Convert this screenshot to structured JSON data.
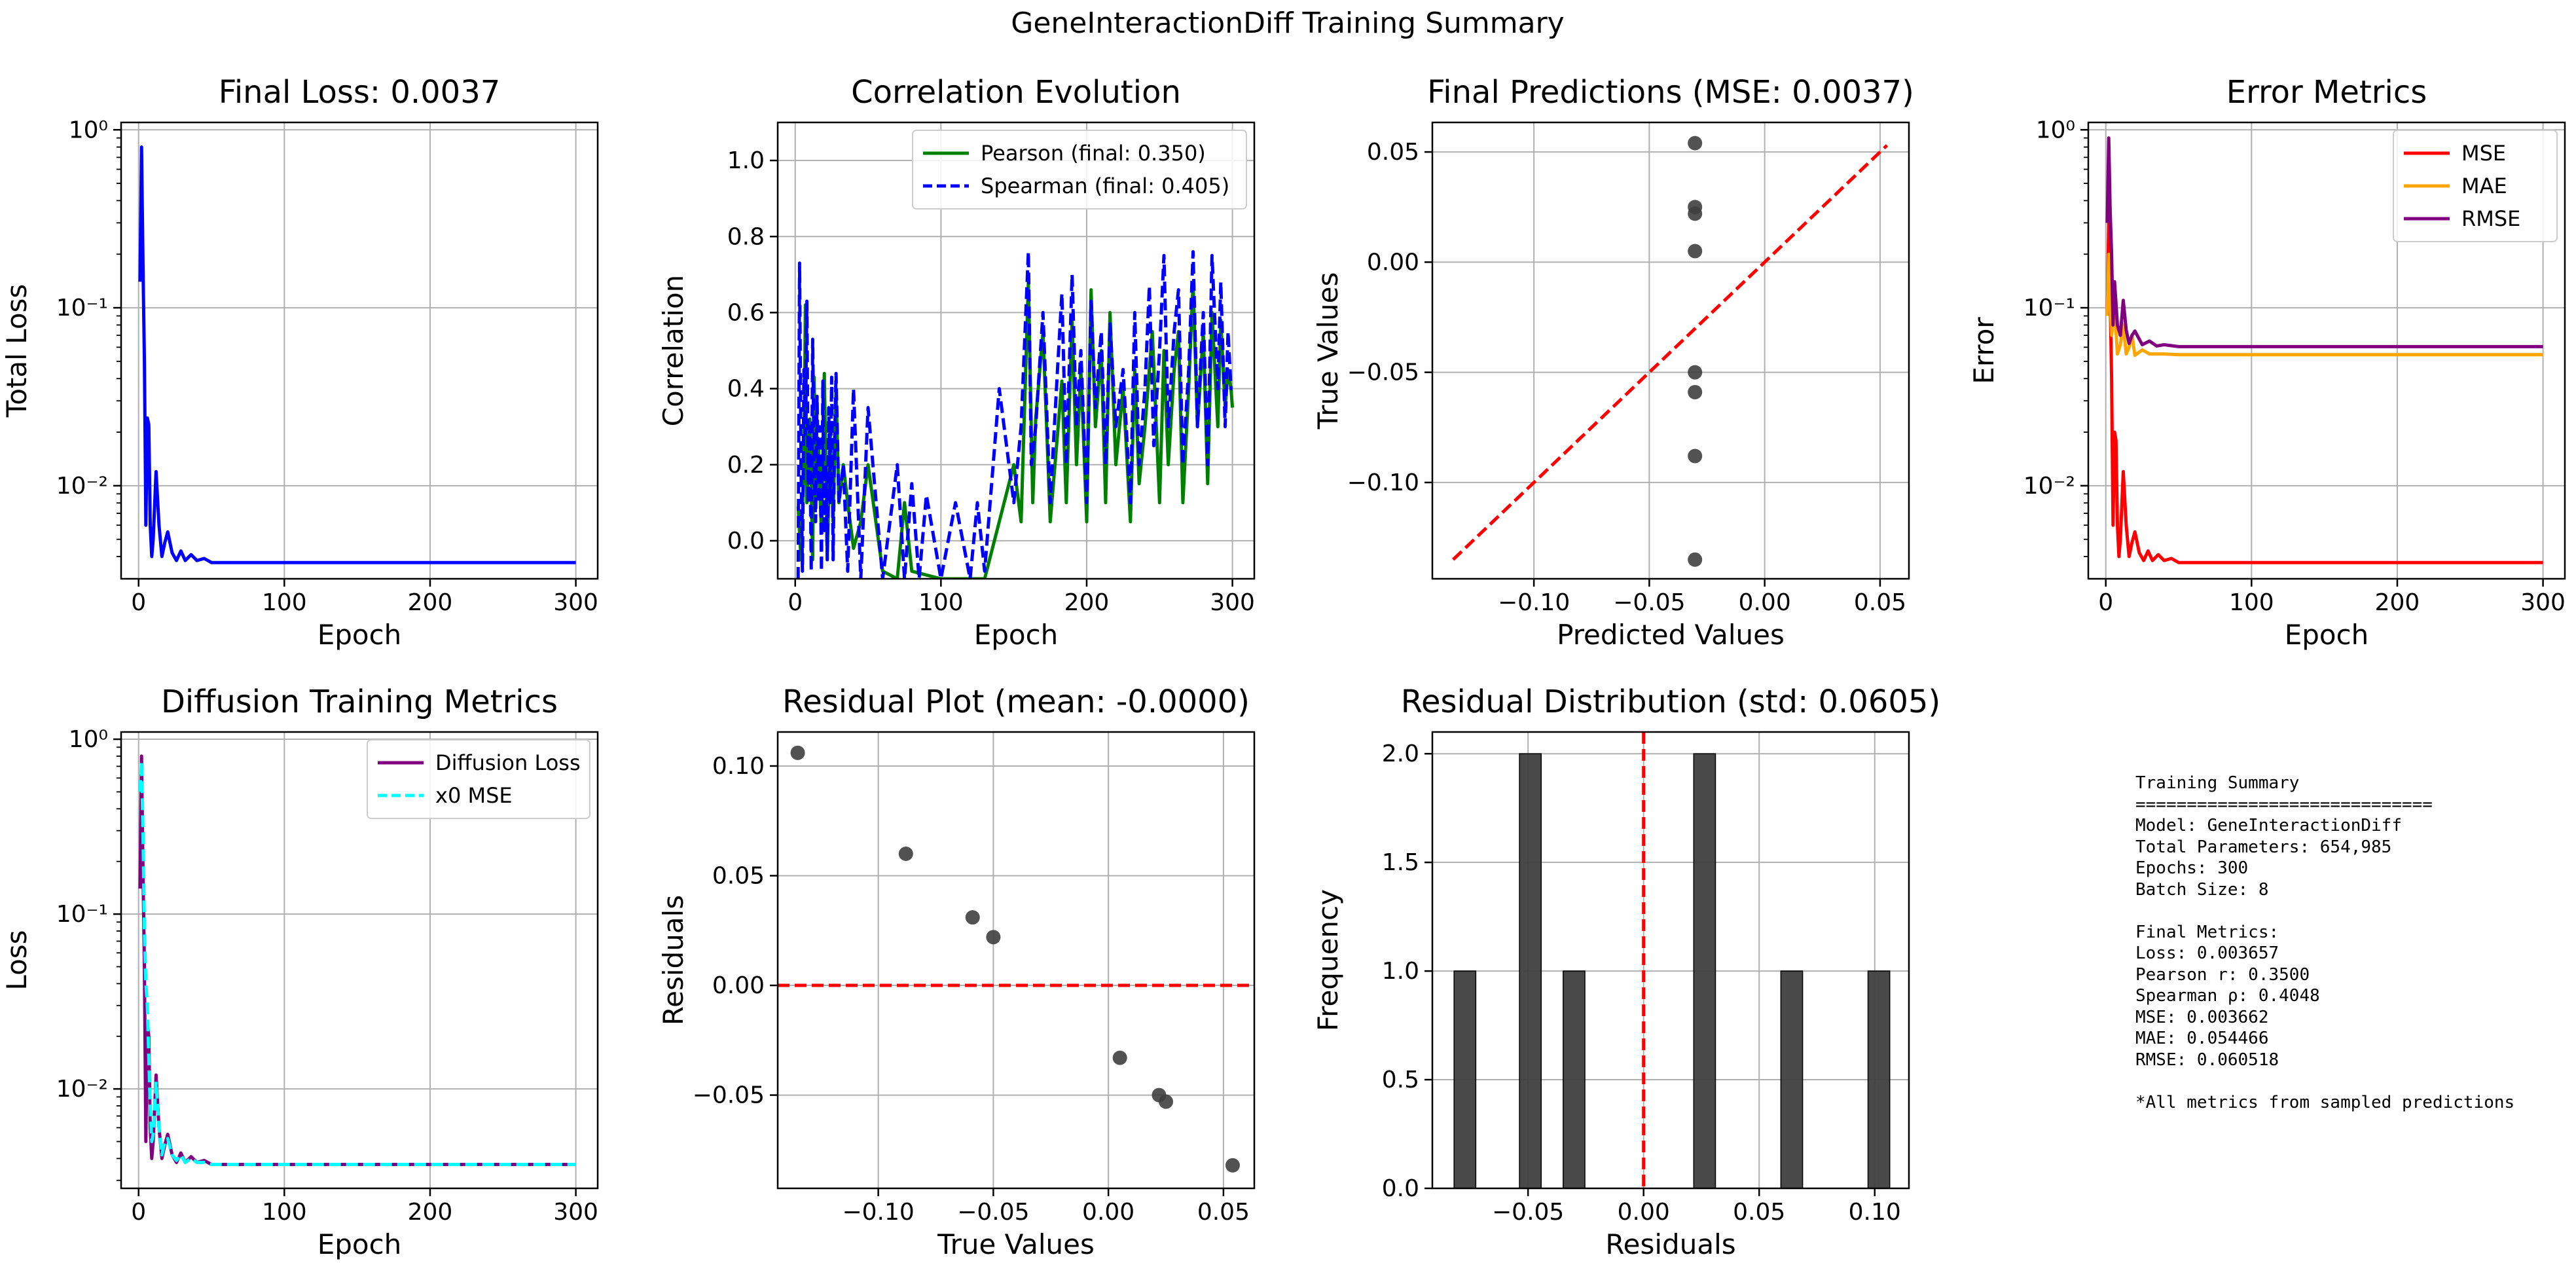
{
  "suptitle": "GeneInteractionDiff Training Summary",
  "colors": {
    "blue": "#0000ff",
    "green": "#008000",
    "red": "#ff0000",
    "orange": "#ffa500",
    "purple": "#800080",
    "cyan": "#00ffff",
    "marker": "#3f3f3f",
    "grid": "#b0b0b0"
  },
  "chart_data": [
    {
      "id": "final-loss",
      "type": "line",
      "title": "Final Loss: 0.0037",
      "xlabel": "Epoch",
      "ylabel": "Total Loss",
      "xlim": [
        -12,
        315
      ],
      "xticks": [
        0,
        100,
        200,
        300
      ],
      "yscale": "log",
      "ylim": [
        0.003,
        1.1
      ],
      "yticks": [
        0.01,
        0.1,
        1
      ],
      "ytick_labels": [
        "10⁻²",
        "10⁻¹",
        "10⁰"
      ],
      "grid": true,
      "series": [
        {
          "color": "blue",
          "style": "solid",
          "x": [
            1,
            2,
            3,
            4,
            5,
            6,
            7,
            8,
            9,
            10,
            12,
            14,
            16,
            18,
            20,
            23,
            26,
            29,
            32,
            36,
            40,
            45,
            50,
            60,
            80,
            100,
            150,
            200,
            250,
            300
          ],
          "y": [
            0.14,
            0.8,
            0.18,
            0.05,
            0.006,
            0.024,
            0.022,
            0.006,
            0.004,
            0.005,
            0.012,
            0.006,
            0.004,
            0.0048,
            0.0055,
            0.0042,
            0.0038,
            0.0043,
            0.0038,
            0.0041,
            0.0038,
            0.0039,
            0.0037,
            0.0037,
            0.0037,
            0.0037,
            0.0037,
            0.0037,
            0.0037,
            0.0037
          ]
        }
      ]
    },
    {
      "id": "correlation-evolution",
      "type": "line",
      "title": "Correlation Evolution",
      "xlabel": "Epoch",
      "ylabel": "Correlation",
      "xlim": [
        -12,
        315
      ],
      "xticks": [
        0,
        100,
        200,
        300
      ],
      "ylim": [
        -0.1,
        1.1
      ],
      "yticks": [
        0.0,
        0.2,
        0.4,
        0.6,
        0.8,
        1.0
      ],
      "ytick_labels": [
        "0.0",
        "0.2",
        "0.4",
        "0.6",
        "0.8",
        "1.0"
      ],
      "grid": true,
      "legend": "top-right",
      "series": [
        {
          "name": "Pearson (final: 0.350)",
          "color": "green",
          "style": "solid",
          "x": [
            2,
            4,
            6,
            7,
            8,
            10,
            12,
            13,
            14,
            16,
            18,
            20,
            22,
            24,
            26,
            28,
            30,
            33,
            36,
            40,
            45,
            50,
            60,
            70,
            75,
            80,
            100,
            120,
            130,
            140,
            150,
            155,
            160,
            163,
            165,
            170,
            175,
            180,
            183,
            186,
            190,
            193,
            196,
            200,
            203,
            206,
            210,
            213,
            216,
            220,
            225,
            230,
            233,
            236,
            240,
            245,
            250,
            253,
            256,
            260,
            263,
            266,
            270,
            273,
            276,
            280,
            283,
            286,
            290,
            292,
            295,
            297,
            299,
            300
          ],
          "y": [
            0.09,
            -0.05,
            0.2,
            0.62,
            0.1,
            0.32,
            -0.05,
            0.43,
            0.1,
            0.25,
            0.02,
            0.44,
            -0.05,
            0.3,
            0.05,
            0.4,
            0.1,
            0.2,
            0.1,
            -0.02,
            0.05,
            0.2,
            -0.08,
            -0.1,
            0.1,
            -0.08,
            -0.1,
            -0.1,
            -0.1,
            0.05,
            0.2,
            0.05,
            0.68,
            0.1,
            0.32,
            0.55,
            0.05,
            0.28,
            0.42,
            0.1,
            0.58,
            0.2,
            0.45,
            0.05,
            0.66,
            0.3,
            0.5,
            0.1,
            0.6,
            0.2,
            0.4,
            0.05,
            0.45,
            0.15,
            0.3,
            0.55,
            0.1,
            0.5,
            0.2,
            0.45,
            0.55,
            0.1,
            0.4,
            0.68,
            0.3,
            0.55,
            0.15,
            0.6,
            0.3,
            0.58,
            0.35,
            0.45,
            0.4,
            0.35
          ]
        },
        {
          "name": "Spearman (final: 0.405)",
          "color": "blue",
          "style": "dashed",
          "x": [
            2,
            3,
            4,
            5,
            6,
            7,
            8,
            9,
            10,
            11,
            12,
            13,
            14,
            15,
            16,
            17,
            18,
            19,
            20,
            21,
            22,
            23,
            24,
            25,
            26,
            27,
            28,
            30,
            33,
            36,
            40,
            45,
            50,
            60,
            70,
            75,
            80,
            85,
            90,
            100,
            110,
            120,
            125,
            130,
            140,
            150,
            155,
            160,
            162,
            165,
            170,
            175,
            180,
            183,
            186,
            190,
            193,
            196,
            200,
            203,
            206,
            210,
            213,
            216,
            220,
            225,
            230,
            233,
            236,
            240,
            243,
            246,
            250,
            253,
            256,
            260,
            263,
            266,
            270,
            273,
            276,
            280,
            283,
            286,
            290,
            292,
            295,
            297,
            299,
            300
          ],
          "y": [
            -0.1,
            0.73,
            0.2,
            -0.08,
            0.45,
            0.28,
            0.63,
            0.1,
            0.3,
            -0.08,
            0.53,
            0.2,
            0.05,
            0.38,
            0.1,
            0.3,
            -0.08,
            0.42,
            0.02,
            0.2,
            -0.05,
            0.35,
            0.1,
            0.43,
            -0.05,
            0.25,
            0.44,
            0.1,
            0.2,
            -0.08,
            0.4,
            -0.1,
            0.35,
            -0.1,
            0.2,
            -0.1,
            0.15,
            -0.1,
            0.12,
            -0.1,
            0.1,
            -0.1,
            0.1,
            -0.08,
            0.4,
            0.1,
            0.3,
            0.76,
            0.2,
            0.3,
            0.6,
            0.1,
            0.45,
            0.65,
            0.2,
            0.7,
            0.3,
            0.5,
            0.1,
            0.63,
            0.35,
            0.55,
            0.2,
            0.57,
            0.3,
            0.45,
            0.1,
            0.6,
            0.2,
            0.4,
            0.67,
            0.25,
            0.5,
            0.75,
            0.3,
            0.55,
            0.66,
            0.2,
            0.45,
            0.76,
            0.3,
            0.6,
            0.2,
            0.75,
            0.4,
            0.68,
            0.3,
            0.55,
            0.4,
            0.4
          ]
        }
      ]
    },
    {
      "id": "final-predictions",
      "type": "scatter",
      "title": "Final Predictions (MSE: 0.0037)",
      "xlabel": "Predicted Values",
      "ylabel": "True Values",
      "xlim": [
        -0.144,
        0.0625
      ],
      "xticks": [
        -0.1,
        -0.05,
        0.0,
        0.05
      ],
      "xtick_labels": [
        "−0.10",
        "−0.05",
        "0.00",
        "0.05"
      ],
      "ylim": [
        -0.1437,
        0.0634
      ],
      "yticks": [
        -0.1,
        -0.05,
        0.0,
        0.05
      ],
      "ytick_labels": [
        "−0.10",
        "−0.05",
        "0.00",
        "0.05"
      ],
      "grid": true,
      "points": {
        "color": "marker",
        "x": [
          -0.0302,
          -0.0302,
          -0.0302,
          -0.0302,
          -0.0302,
          -0.0302,
          -0.0302,
          -0.0302
        ],
        "y": [
          0.054,
          0.025,
          0.022,
          0.005,
          -0.05,
          -0.059,
          -0.088,
          -0.135
        ]
      },
      "reference_line": {
        "color": "red",
        "style": "dashed",
        "x": [
          -0.135,
          0.053
        ],
        "y": [
          -0.135,
          0.053
        ]
      }
    },
    {
      "id": "error-metrics",
      "type": "line",
      "title": "Error Metrics",
      "xlabel": "Epoch",
      "ylabel": "Error",
      "xlim": [
        -12,
        315
      ],
      "xticks": [
        0,
        100,
        200,
        300
      ],
      "yscale": "log",
      "ylim": [
        0.003,
        1.1
      ],
      "yticks": [
        0.01,
        0.1,
        1
      ],
      "ytick_labels": [
        "10⁻²",
        "10⁻¹",
        "10⁰"
      ],
      "grid": true,
      "legend": "top-right",
      "series": [
        {
          "name": "MSE",
          "color": "red",
          "style": "solid",
          "x": [
            1,
            2,
            3,
            4,
            5,
            6,
            7,
            8,
            9,
            10,
            12,
            14,
            16,
            18,
            20,
            23,
            26,
            29,
            32,
            36,
            40,
            45,
            50,
            60,
            80,
            100,
            150,
            200,
            250,
            300
          ],
          "y": [
            0.09,
            0.3,
            0.12,
            0.04,
            0.006,
            0.02,
            0.018,
            0.006,
            0.004,
            0.005,
            0.012,
            0.006,
            0.004,
            0.0048,
            0.0055,
            0.0042,
            0.0038,
            0.0043,
            0.0038,
            0.0041,
            0.0038,
            0.0039,
            0.0037,
            0.0037,
            0.0037,
            0.0037,
            0.0037,
            0.0037,
            0.0037,
            0.0037
          ]
        },
        {
          "name": "MAE",
          "color": "orange",
          "style": "solid",
          "x": [
            1,
            2,
            3,
            4,
            6,
            8,
            10,
            12,
            14,
            16,
            18,
            20,
            25,
            30,
            40,
            50,
            60,
            100,
            200,
            300
          ],
          "y": [
            0.09,
            0.2,
            0.12,
            0.07,
            0.1,
            0.055,
            0.062,
            0.08,
            0.055,
            0.06,
            0.07,
            0.054,
            0.058,
            0.055,
            0.055,
            0.0545,
            0.0545,
            0.0545,
            0.0545,
            0.0545
          ]
        },
        {
          "name": "RMSE",
          "color": "purple",
          "style": "solid",
          "x": [
            1,
            2,
            3,
            4,
            5,
            6,
            8,
            10,
            12,
            14,
            16,
            18,
            20,
            25,
            30,
            35,
            40,
            50,
            60,
            100,
            200,
            300
          ],
          "y": [
            0.3,
            0.9,
            0.35,
            0.2,
            0.08,
            0.14,
            0.08,
            0.07,
            0.11,
            0.075,
            0.063,
            0.07,
            0.074,
            0.062,
            0.065,
            0.061,
            0.062,
            0.0605,
            0.0605,
            0.0605,
            0.0605,
            0.0605
          ]
        }
      ]
    },
    {
      "id": "diffusion-metrics",
      "type": "line",
      "title": "Diffusion Training Metrics",
      "xlabel": "Epoch",
      "ylabel": "Loss",
      "xlim": [
        -12,
        315
      ],
      "xticks": [
        0,
        100,
        200,
        300
      ],
      "yscale": "log",
      "ylim": [
        0.0027,
        1.1
      ],
      "yticks": [
        0.01,
        0.1,
        1
      ],
      "ytick_labels": [
        "10⁻²",
        "10⁻¹",
        "10⁰"
      ],
      "grid": true,
      "legend": "top-right",
      "series": [
        {
          "name": "Diffusion Loss",
          "color": "purple",
          "style": "solid",
          "x": [
            1,
            2,
            3,
            4,
            5,
            6,
            7,
            8,
            9,
            10,
            12,
            14,
            16,
            18,
            20,
            23,
            26,
            29,
            32,
            36,
            40,
            45,
            50,
            60,
            80,
            100,
            150,
            200,
            250,
            300
          ],
          "y": [
            0.14,
            0.8,
            0.18,
            0.05,
            0.005,
            0.024,
            0.02,
            0.006,
            0.004,
            0.005,
            0.012,
            0.006,
            0.004,
            0.0048,
            0.0055,
            0.0042,
            0.0038,
            0.0043,
            0.0038,
            0.0041,
            0.0038,
            0.0039,
            0.0037,
            0.0037,
            0.0037,
            0.0037,
            0.0037,
            0.0037,
            0.0037,
            0.0037
          ]
        },
        {
          "name": "x0 MSE",
          "color": "cyan",
          "style": "dashed",
          "x": [
            1,
            2,
            3,
            4,
            5,
            6,
            7,
            8,
            9,
            10,
            12,
            14,
            16,
            18,
            20,
            23,
            26,
            29,
            32,
            36,
            40,
            45,
            50,
            60,
            80,
            100,
            150,
            200,
            250,
            300
          ],
          "y": [
            0.5,
            0.75,
            0.3,
            0.08,
            0.04,
            0.03,
            0.015,
            0.008,
            0.005,
            0.0055,
            0.011,
            0.006,
            0.0042,
            0.005,
            0.0052,
            0.0042,
            0.0039,
            0.0042,
            0.0038,
            0.004,
            0.0038,
            0.0038,
            0.0037,
            0.0037,
            0.0037,
            0.0037,
            0.0037,
            0.0037,
            0.0037,
            0.0037
          ]
        }
      ]
    },
    {
      "id": "residual-plot",
      "type": "scatter",
      "title": "Residual Plot (mean: -0.0000)",
      "xlabel": "True Values",
      "ylabel": "Residuals",
      "xlim": [
        -0.1437,
        0.0634
      ],
      "xticks": [
        -0.1,
        -0.05,
        0.0,
        0.05
      ],
      "xtick_labels": [
        "−0.10",
        "−0.05",
        "0.00",
        "0.05"
      ],
      "ylim": [
        -0.0925,
        0.1155
      ],
      "yticks": [
        -0.05,
        0.0,
        0.05,
        0.1
      ],
      "ytick_labels": [
        "−0.05",
        "0.00",
        "0.05",
        "0.10"
      ],
      "grid": true,
      "points": {
        "color": "marker",
        "x": [
          -0.135,
          -0.088,
          -0.059,
          -0.05,
          0.005,
          0.022,
          0.025,
          0.054
        ],
        "y": [
          0.106,
          0.06,
          0.031,
          0.022,
          -0.033,
          -0.05,
          -0.053,
          -0.082
        ]
      },
      "hline": {
        "y": 0.0,
        "color": "red",
        "style": "dashed"
      }
    },
    {
      "id": "residual-distribution",
      "type": "bar",
      "title": "Residual Distribution (std: 0.0605)",
      "xlabel": "Residuals",
      "ylabel": "Frequency",
      "xlim": [
        -0.0914,
        0.1148
      ],
      "xticks": [
        -0.05,
        0.0,
        0.05,
        0.1
      ],
      "xtick_labels": [
        "−0.05",
        "0.00",
        "0.05",
        "0.10"
      ],
      "ylim": [
        0,
        2.1
      ],
      "yticks": [
        0.0,
        0.5,
        1.0,
        1.5,
        2.0
      ],
      "ytick_labels": [
        "0.0",
        "0.5",
        "1.0",
        "1.5",
        "2.0"
      ],
      "grid": true,
      "bins": [
        {
          "x0": -0.082,
          "x1": -0.0726,
          "count": 1
        },
        {
          "x0": -0.0537,
          "x1": -0.0443,
          "count": 2
        },
        {
          "x0": -0.0348,
          "x1": -0.0254,
          "count": 1
        },
        {
          "x0": 0.0217,
          "x1": 0.0311,
          "count": 2
        },
        {
          "x0": 0.0594,
          "x1": 0.0688,
          "count": 1
        },
        {
          "x0": 0.0971,
          "x1": 0.1065,
          "count": 1
        }
      ],
      "vline": {
        "x": 0.0,
        "color": "red",
        "style": "dashed"
      }
    }
  ],
  "summary": {
    "lines": [
      "Training Summary",
      "=============================",
      "Model: GeneInteractionDiff",
      "Total Parameters: 654,985",
      "Epochs: 300",
      "Batch Size: 8",
      "",
      "Final Metrics:",
      "Loss: 0.003657",
      "Pearson r: 0.3500",
      "Spearman ρ: 0.4048",
      "MSE: 0.003662",
      "MAE: 0.054466",
      "RMSE: 0.060518",
      "",
      "*All metrics from sampled predictions"
    ]
  }
}
